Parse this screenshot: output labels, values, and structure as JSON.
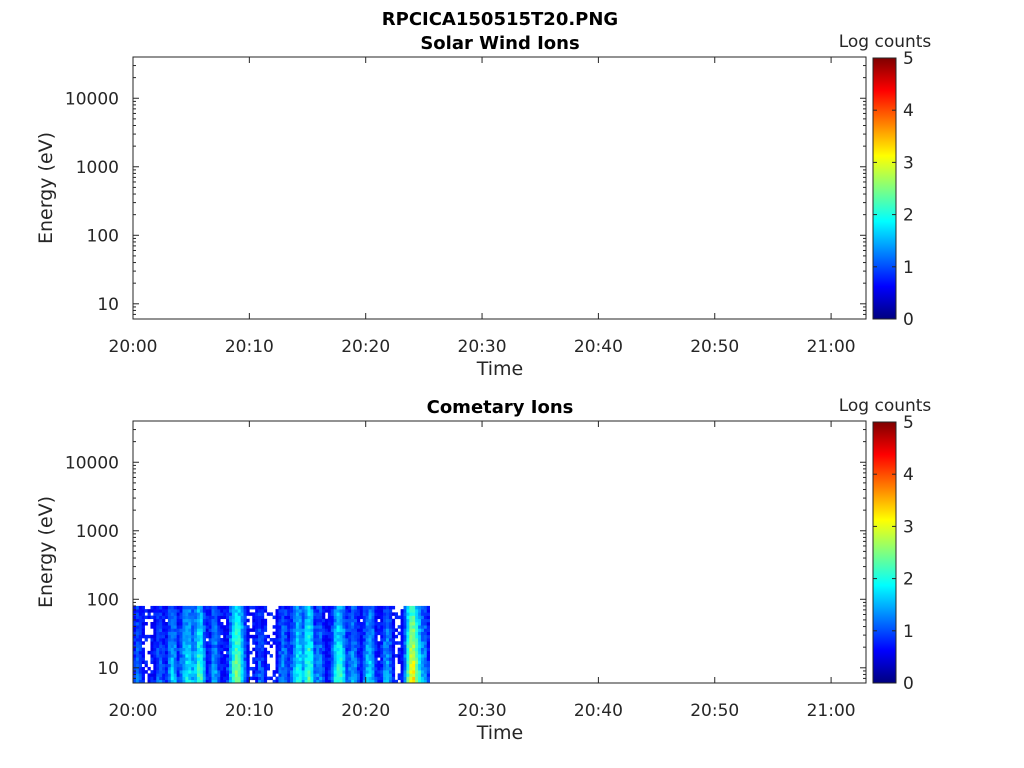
{
  "figure_title": "RPCICA150515T20.PNG",
  "colormap": [
    "#00007f",
    "#0000ff",
    "#007fff",
    "#00ffff",
    "#7fff7f",
    "#ffff00",
    "#ff7f00",
    "#ff0000",
    "#7f0000"
  ],
  "chart_data": [
    {
      "type": "heatmap",
      "title": "Solar Wind Ions",
      "xlabel": "Time",
      "ylabel": "Energy (eV)",
      "x_ticks": [
        "20:00",
        "20:10",
        "20:20",
        "20:30",
        "20:40",
        "20:50",
        "21:00"
      ],
      "x_range_minutes": [
        0,
        63
      ],
      "y_scale": "log",
      "y_ticks": [
        "10",
        "100",
        "1000",
        "10000"
      ],
      "y_range": [
        6,
        40000
      ],
      "colorbar": {
        "label": "Log counts",
        "range": [
          0,
          5
        ],
        "ticks": [
          "0",
          "1",
          "2",
          "3",
          "4",
          "5"
        ]
      },
      "data": []
    },
    {
      "type": "heatmap",
      "title": "Cometary Ions",
      "xlabel": "Time",
      "ylabel": "Energy (eV)",
      "x_ticks": [
        "20:00",
        "20:10",
        "20:20",
        "20:30",
        "20:40",
        "20:50",
        "21:00"
      ],
      "x_range_minutes": [
        0,
        63
      ],
      "y_scale": "log",
      "y_ticks": [
        "10",
        "100",
        "1000",
        "10000"
      ],
      "y_range": [
        6,
        40000
      ],
      "colorbar": {
        "label": "Log counts",
        "range": [
          0,
          5
        ],
        "ticks": [
          "0",
          "1",
          "2",
          "3",
          "4",
          "5"
        ]
      },
      "data_extent": {
        "time_minutes": [
          0,
          25.3
        ],
        "energy_ev": [
          6,
          80
        ]
      },
      "bursts": [
        {
          "t": 0.3,
          "width": 0.5,
          "peak": 1.3
        },
        {
          "t": 2.2,
          "width": 0.6,
          "peak": 1.2
        },
        {
          "t": 3.3,
          "width": 0.6,
          "peak": 1.7
        },
        {
          "t": 4.6,
          "width": 0.9,
          "peak": 1.9
        },
        {
          "t": 5.6,
          "width": 0.6,
          "peak": 2.3
        },
        {
          "t": 6.9,
          "width": 0.6,
          "peak": 1.5
        },
        {
          "t": 8.8,
          "width": 0.8,
          "peak": 2.6
        },
        {
          "t": 10.8,
          "width": 0.5,
          "peak": 1.2
        },
        {
          "t": 12.8,
          "width": 0.6,
          "peak": 1.4
        },
        {
          "t": 14.1,
          "width": 0.8,
          "peak": 2.0
        },
        {
          "t": 15.0,
          "width": 0.6,
          "peak": 2.4
        },
        {
          "t": 15.9,
          "width": 0.6,
          "peak": 1.4
        },
        {
          "t": 17.6,
          "width": 0.8,
          "peak": 2.2
        },
        {
          "t": 18.8,
          "width": 0.6,
          "peak": 1.6
        },
        {
          "t": 20.2,
          "width": 0.7,
          "peak": 1.8
        },
        {
          "t": 21.7,
          "width": 0.6,
          "peak": 1.6
        },
        {
          "t": 23.9,
          "width": 0.7,
          "peak": 3.3
        },
        {
          "t": 24.5,
          "width": 0.5,
          "peak": 2.0
        },
        {
          "t": 25.0,
          "width": 0.4,
          "peak": 1.4
        }
      ]
    }
  ]
}
